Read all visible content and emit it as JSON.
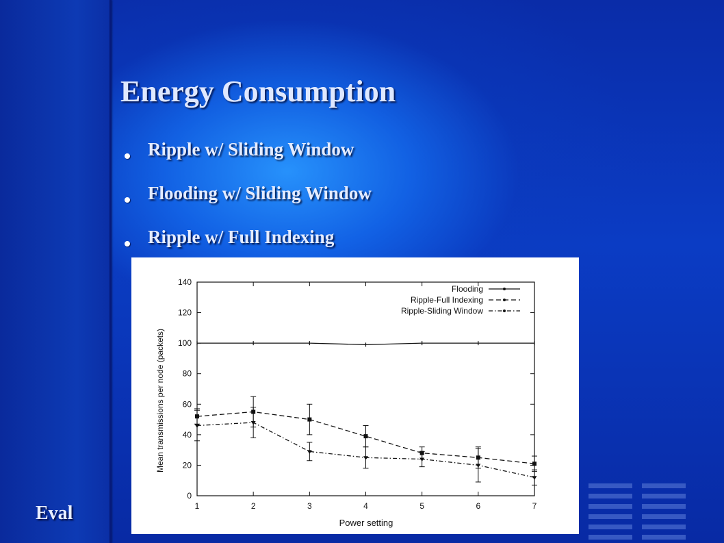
{
  "slide": {
    "title": "Energy Consumption",
    "bullets": [
      "Ripple w/ Sliding Window",
      "Flooding w/ Sliding Window",
      "Ripple w/ Full Indexing"
    ],
    "footer_label": "Eval",
    "colors": {
      "background": "#06209a",
      "glow": "#2896ff",
      "text": "#e4ecff",
      "decoration": "#3f62c8"
    }
  },
  "chart_data": {
    "type": "line",
    "xlabel": "Power setting",
    "ylabel": "Mean transmissions per node (packets)",
    "x": [
      1,
      2,
      3,
      4,
      5,
      6,
      7
    ],
    "xlim": [
      1,
      7
    ],
    "ylim": [
      0,
      140
    ],
    "yticks": [
      0,
      20,
      40,
      60,
      80,
      100,
      120,
      140
    ],
    "xticks": [
      1,
      2,
      3,
      4,
      5,
      6,
      7
    ],
    "legend_position": "top-right",
    "grid": false,
    "series": [
      {
        "name": "Flooding",
        "style": "solid",
        "values": [
          100,
          100,
          100,
          99,
          100,
          100,
          100
        ],
        "err": [
          0,
          0,
          0,
          0,
          0,
          0,
          0
        ]
      },
      {
        "name": "Ripple-Full Indexing",
        "style": "dashed",
        "values": [
          52,
          55,
          50,
          39,
          28,
          25,
          21
        ],
        "err": [
          5,
          10,
          10,
          7,
          4,
          7,
          5
        ]
      },
      {
        "name": "Ripple-Sliding Window",
        "style": "dashdot",
        "values": [
          46,
          48,
          29,
          25,
          24,
          20,
          12
        ],
        "err": [
          10,
          10,
          6,
          7,
          5,
          11,
          5
        ]
      }
    ]
  }
}
